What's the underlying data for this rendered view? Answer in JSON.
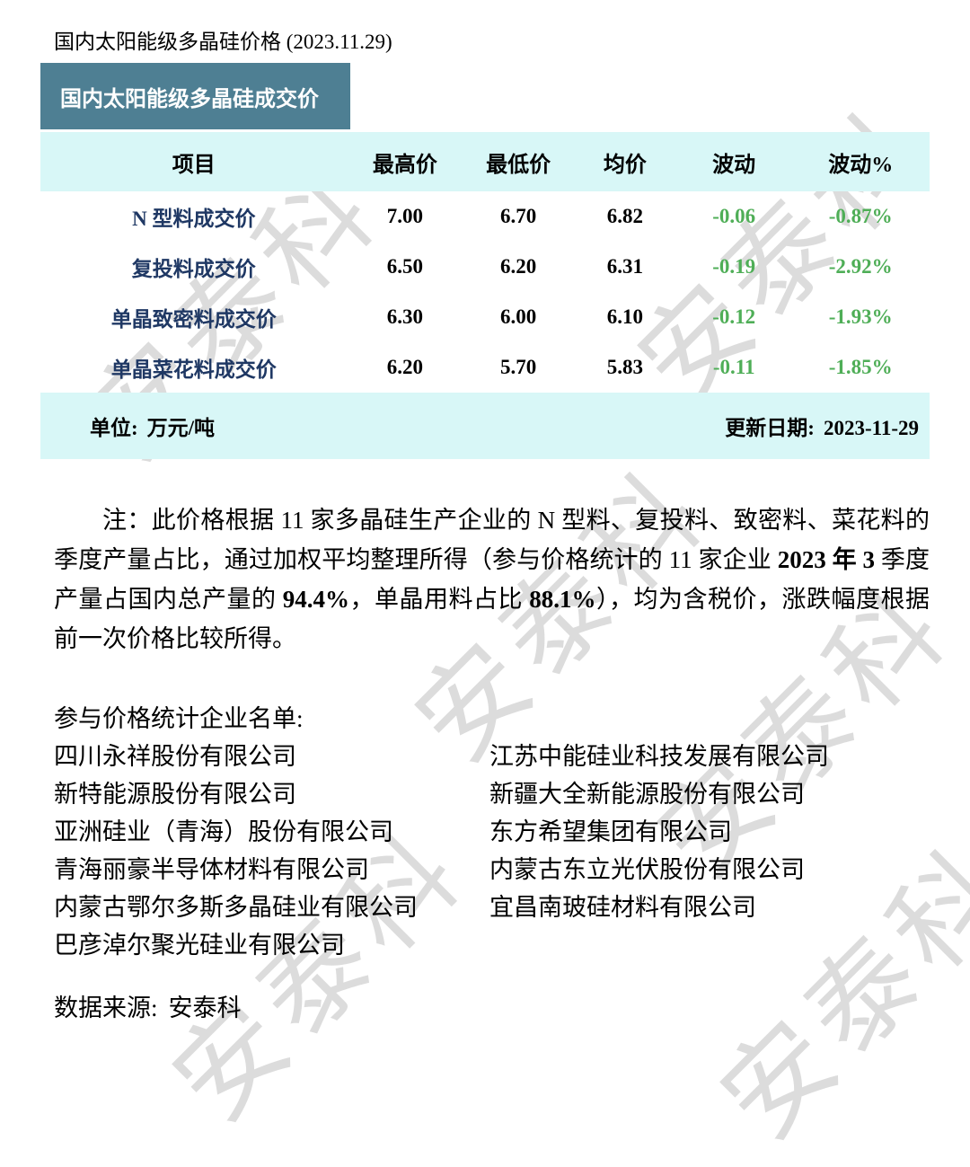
{
  "page": {
    "title": "国内太阳能级多晶硅价格 (2023.11.29)",
    "banner": "国内太阳能级多晶硅成交价",
    "watermark": "安泰科"
  },
  "colors": {
    "banner_bg": "#4e7f93",
    "band_bg": "#d8f7f7",
    "item_text": "#1f3864",
    "negative_change": "#4fae57",
    "watermark": "#c8c8c8"
  },
  "table": {
    "columns": [
      "项目",
      "最高价",
      "最低价",
      "均价",
      "波动",
      "波动%"
    ],
    "rows": [
      {
        "item": "N 型料成交价",
        "high": "7.00",
        "low": "6.70",
        "avg": "6.82",
        "change": "-0.06",
        "change_pct": "-0.87%"
      },
      {
        "item": "复投料成交价",
        "high": "6.50",
        "low": "6.20",
        "avg": "6.31",
        "change": "-0.19",
        "change_pct": "-2.92%"
      },
      {
        "item": "单晶致密料成交价",
        "high": "6.30",
        "low": "6.00",
        "avg": "6.10",
        "change": "-0.12",
        "change_pct": "-1.93%"
      },
      {
        "item": "单晶菜花料成交价",
        "high": "6.20",
        "low": "5.70",
        "avg": "5.83",
        "change": "-0.11",
        "change_pct": "-1.85%"
      }
    ],
    "footer": {
      "unit_label": "单位:",
      "unit_value": "万元/吨",
      "update_label": "更新日期:",
      "update_value": "2023-11-29"
    }
  },
  "note": {
    "seg1": "注：此价格根据 11 家多晶硅生产企业的 N 型料、复投料、致密料、菜花料的季度产量占比，通过加权平均整理所得（参与价格统计的 11 家企业 ",
    "seg2_bold": "2023 年 3 ",
    "seg3": "季度产量占国内总产量的 ",
    "seg4_bold": "94.4%",
    "seg5": "，单晶用料占比 ",
    "seg6_bold": "88.1%",
    "seg7": "），均为含税价，涨跌幅度根据前一次价格比较所得。"
  },
  "companies": {
    "heading": "参与价格统计企业名单:",
    "left": [
      "四川永祥股份有限公司",
      "新特能源股份有限公司",
      "亚洲硅业（青海）股份有限公司",
      "青海丽豪半导体材料有限公司",
      "内蒙古鄂尔多斯多晶硅业有限公司",
      "巴彦淖尔聚光硅业有限公司"
    ],
    "right": [
      "江苏中能硅业科技发展有限公司",
      "新疆大全新能源股份有限公司",
      "东方希望集团有限公司",
      "内蒙古东立光伏股份有限公司",
      "宜昌南玻硅材料有限公司"
    ]
  },
  "source": {
    "label": "数据来源:",
    "value": "安泰科"
  }
}
